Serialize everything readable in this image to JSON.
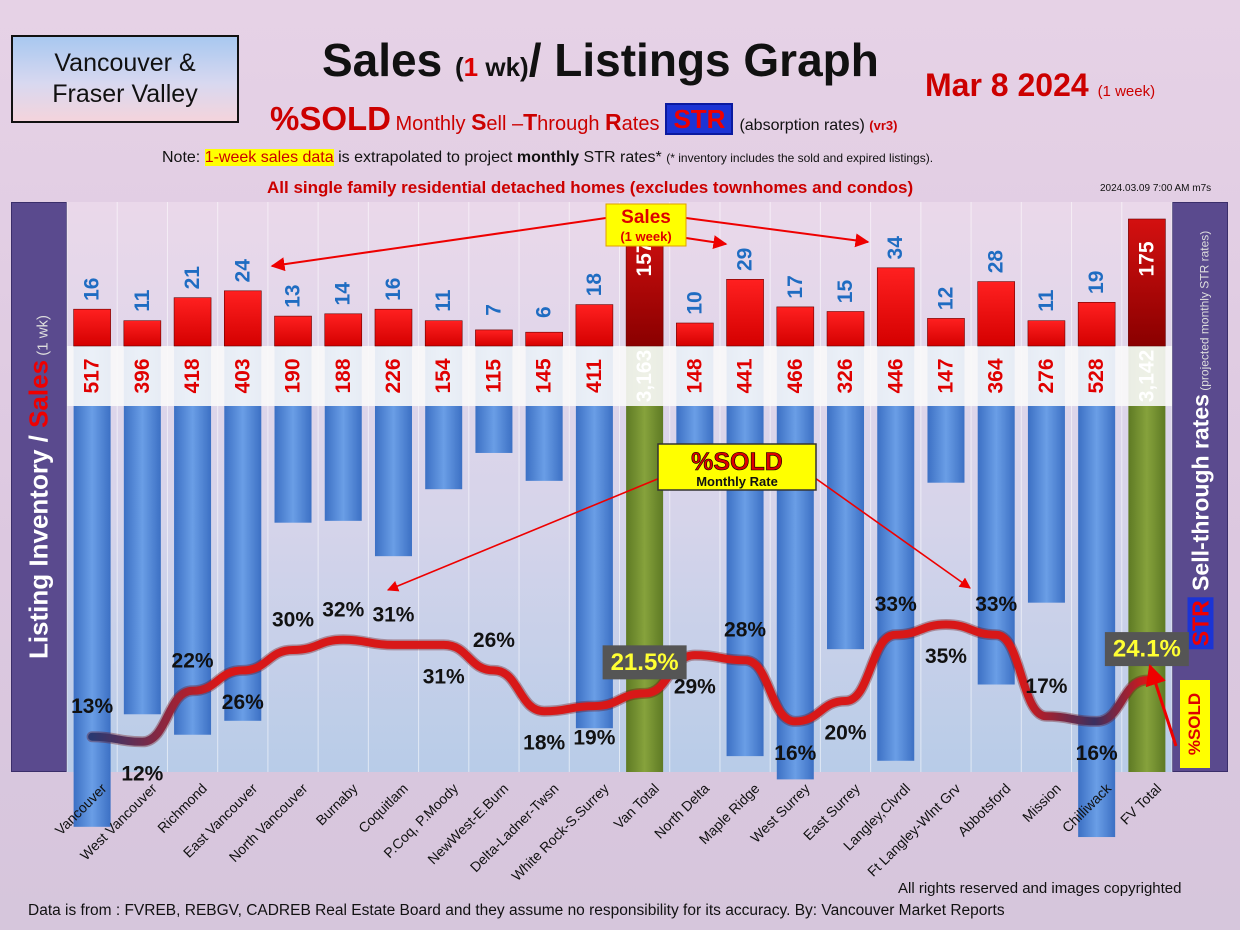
{
  "header": {
    "region_line1": "Vancouver &",
    "region_line2": "Fraser Valley",
    "title_a": "Sales",
    "title_b": "(",
    "title_c": "1",
    "title_d": " wk)",
    "title_e": "/ Listings Graph",
    "date": "Mar 8  2024",
    "date_sub": "(1 week)",
    "sub_a": "%SOLD",
    "sub_b1": "Monthly ",
    "sub_b2": "S",
    "sub_b3": "ell –",
    "sub_b4": "T",
    "sub_b5": "hrough ",
    "sub_b6": "R",
    "sub_b7": "ates",
    "sub_str": "STR",
    "sub_c": "(absorption rates)",
    "sub_d": "(vr3)",
    "note_a": "Note: ",
    "note_b": "1-week sales data",
    "note_c": " is extrapolated to project ",
    "note_d": "monthly",
    "note_e": " STR rates* ",
    "note_f": "(* inventory includes the sold and expired listings).",
    "exclusion": "All single family residential detached homes (excludes townhomes and condos)",
    "stamp": "2024.03.09 7:00 AM m7s"
  },
  "side": {
    "left_a": "Listing Inventory ",
    "left_b": "/ ",
    "left_c": "Sales",
    "left_d": " (1 wk)",
    "right_str": "STR",
    "right_a": " Sell-through rates",
    "right_b": " (projected monthly STR rates)",
    "sold_box": "%SOLD"
  },
  "annotations": {
    "sales_label": "Sales",
    "sales_sub": "(1 week)",
    "sold_label": "%SOLD",
    "sold_sub": "Monthly Rate"
  },
  "colors": {
    "sales_bar": "#e60000",
    "total_sales_bar": "#b00000",
    "listing_bar": "#4f86d8",
    "total_listing_bar": "#6f8a2e",
    "str_line": "#d82020"
  },
  "footer": {
    "rights": "All rights reserved and  images copyrighted",
    "source": "Data is from : FVREB, REBGV, CADREB Real Estate Board and they assume no responsibility for its accuracy. By: Vancouver Market Reports"
  },
  "chart_data": {
    "type": "bar",
    "categories": [
      "Vancouver",
      "West Vancouver",
      "Richmond",
      "East Vancouver",
      "North Vancouver",
      "Burnaby",
      "Coquitlam",
      "P.Coq, P.Moody",
      "NewWest-E.Burn",
      "Delta-Ladner-Twsn",
      "White Rock-S.Surrey",
      "Van Total",
      "North Delta",
      "Maple Ridge",
      "West Surrey",
      "East Surrey",
      "Langley,Clvrdl",
      "Ft Langley-Wlnt Grv",
      "Abbotsford",
      "Mission",
      "Chilliwack",
      "FV Total"
    ],
    "sales": [
      16,
      11,
      21,
      24,
      13,
      14,
      16,
      11,
      7,
      6,
      18,
      157,
      10,
      29,
      17,
      15,
      34,
      12,
      28,
      11,
      19,
      175
    ],
    "listings": [
      517,
      396,
      418,
      403,
      190,
      188,
      226,
      154,
      115,
      145,
      411,
      3163,
      148,
      441,
      466,
      326,
      446,
      147,
      364,
      276,
      528,
      3142
    ],
    "listing_labels": [
      "517",
      "396",
      "418",
      "403",
      "190",
      "188",
      "226",
      "154",
      "115",
      "145",
      "411",
      "3,163",
      "148",
      "441",
      "466",
      "326",
      "446",
      "147",
      "364",
      "276",
      "528",
      "3,142"
    ],
    "str_rates": [
      "13%",
      "12%",
      "22%",
      "26%",
      "30%",
      "32%",
      "31%",
      "31%",
      "26%",
      "18%",
      "19%",
      "21.5%",
      "29%",
      "28%",
      "16%",
      "20%",
      "33%",
      "35%",
      "33%",
      "17%",
      "16%",
      "24.1%"
    ],
    "str_values": [
      13,
      12,
      22,
      26,
      30,
      32,
      31,
      31,
      26,
      18,
      19,
      21.5,
      29,
      28,
      16,
      20,
      33,
      35,
      33,
      17,
      16,
      24.1
    ]
  }
}
